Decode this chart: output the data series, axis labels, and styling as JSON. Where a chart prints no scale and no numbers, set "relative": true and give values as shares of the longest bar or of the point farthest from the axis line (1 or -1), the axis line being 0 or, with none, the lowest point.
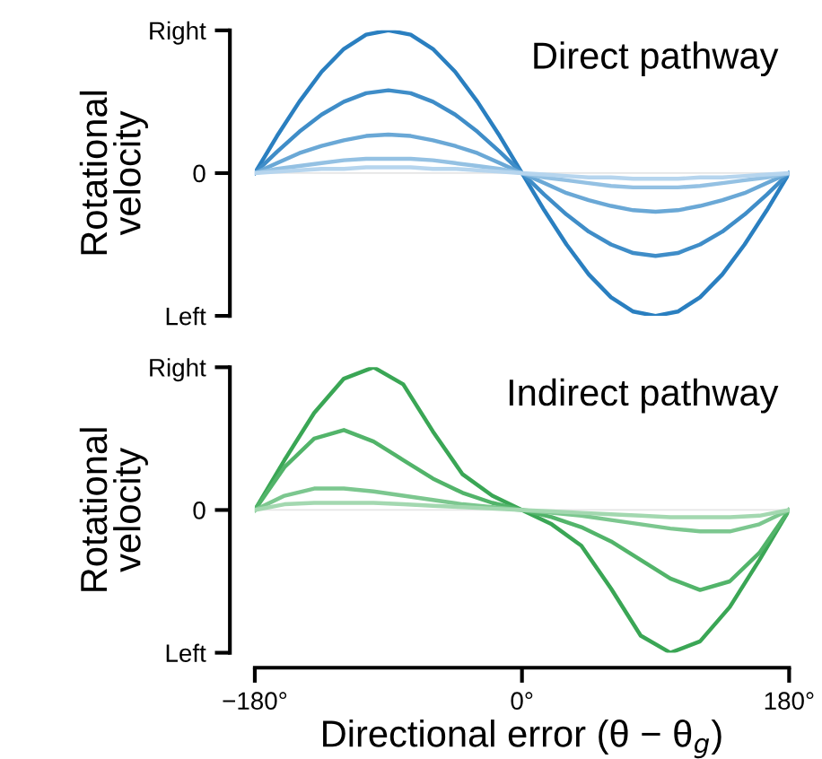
{
  "chart_data": [
    {
      "type": "line",
      "title": "Direct pathway",
      "ylabel": "Rotational\nvelocity",
      "tick_labels": "y",
      "xlim": [
        -180,
        180
      ],
      "relative": true,
      "annotations": [
        "Right",
        "0",
        "Left"
      ],
      "grid": false,
      "legend": false,
      "x": [
        -180,
        -165,
        -150,
        -135,
        -120,
        -105,
        -90,
        -75,
        -60,
        -45,
        -30,
        -15,
        0,
        15,
        30,
        45,
        60,
        75,
        90,
        105,
        120,
        135,
        150,
        165,
        180
      ],
      "series": [
        {
          "color": "#2a7fc0",
          "values": [
            0,
            0.26,
            0.5,
            0.71,
            0.87,
            0.97,
            1,
            0.97,
            0.87,
            0.71,
            0.5,
            0.26,
            0,
            -0.26,
            -0.5,
            -0.71,
            -0.87,
            -0.97,
            -1,
            -0.97,
            -0.87,
            -0.71,
            -0.5,
            -0.26,
            0
          ]
        },
        {
          "color": "#3f8dc8",
          "values": [
            0,
            0.15,
            0.29,
            0.41,
            0.5,
            0.56,
            0.58,
            0.56,
            0.5,
            0.41,
            0.29,
            0.15,
            0,
            -0.15,
            -0.29,
            -0.41,
            -0.5,
            -0.56,
            -0.58,
            -0.56,
            -0.5,
            -0.41,
            -0.29,
            -0.15,
            0
          ]
        },
        {
          "color": "#6aa8d6",
          "values": [
            0,
            0.07,
            0.14,
            0.19,
            0.23,
            0.26,
            0.27,
            0.26,
            0.23,
            0.19,
            0.14,
            0.07,
            0,
            -0.07,
            -0.14,
            -0.19,
            -0.23,
            -0.26,
            -0.27,
            -0.26,
            -0.23,
            -0.19,
            -0.14,
            -0.07,
            0
          ]
        },
        {
          "color": "#94c1e3",
          "values": [
            0,
            0.03,
            0.05,
            0.07,
            0.09,
            0.1,
            0.1,
            0.1,
            0.09,
            0.07,
            0.05,
            0.03,
            0,
            -0.03,
            -0.05,
            -0.07,
            -0.09,
            -0.1,
            -0.1,
            -0.1,
            -0.09,
            -0.07,
            -0.05,
            -0.03,
            0
          ]
        },
        {
          "color": "#b6d5ee",
          "values": [
            0,
            0.01,
            0.02,
            0.03,
            0.03,
            0.04,
            0.04,
            0.04,
            0.03,
            0.03,
            0.02,
            0.01,
            0,
            -0.01,
            -0.02,
            -0.03,
            -0.03,
            -0.04,
            -0.04,
            -0.04,
            -0.03,
            -0.03,
            -0.02,
            -0.01,
            0
          ]
        }
      ]
    },
    {
      "type": "line",
      "title": "Indirect pathway",
      "ylabel": "Rotational\nvelocity",
      "xlabel": "Directional error (θ − θ$_{g}$)",
      "xlim": [
        -180,
        180
      ],
      "xticks": [
        {
          "value": -180,
          "label": "−180°"
        },
        {
          "value": 0,
          "label": "0°"
        },
        {
          "value": 180,
          "label": "180°"
        }
      ],
      "relative": true,
      "annotations": [
        "Right",
        "0",
        "Left"
      ],
      "grid": false,
      "legend": false,
      "x": [
        -180,
        -160,
        -140,
        -120,
        -100,
        -80,
        -60,
        -40,
        -20,
        0,
        20,
        40,
        60,
        80,
        100,
        120,
        140,
        160,
        180
      ],
      "series": [
        {
          "color": "#3aa655",
          "values": [
            0,
            0.35,
            0.68,
            0.92,
            1.0,
            0.88,
            0.55,
            0.25,
            0.1,
            0,
            -0.1,
            -0.25,
            -0.55,
            -0.88,
            -1.0,
            -0.92,
            -0.68,
            -0.35,
            0
          ]
        },
        {
          "color": "#52b46a",
          "values": [
            0,
            0.3,
            0.5,
            0.56,
            0.48,
            0.35,
            0.22,
            0.12,
            0.05,
            0,
            -0.05,
            -0.12,
            -0.22,
            -0.35,
            -0.48,
            -0.56,
            -0.5,
            -0.3,
            0
          ]
        },
        {
          "color": "#7cc78f",
          "values": [
            0,
            0.1,
            0.15,
            0.15,
            0.13,
            0.1,
            0.07,
            0.04,
            0.02,
            0,
            -0.02,
            -0.04,
            -0.07,
            -0.1,
            -0.13,
            -0.15,
            -0.15,
            -0.1,
            0
          ]
        },
        {
          "color": "#a3d8b0",
          "values": [
            0,
            0.04,
            0.05,
            0.05,
            0.05,
            0.04,
            0.03,
            0.02,
            0.01,
            0,
            -0.01,
            -0.02,
            -0.03,
            -0.04,
            -0.05,
            -0.05,
            -0.05,
            -0.04,
            0
          ]
        }
      ]
    }
  ]
}
